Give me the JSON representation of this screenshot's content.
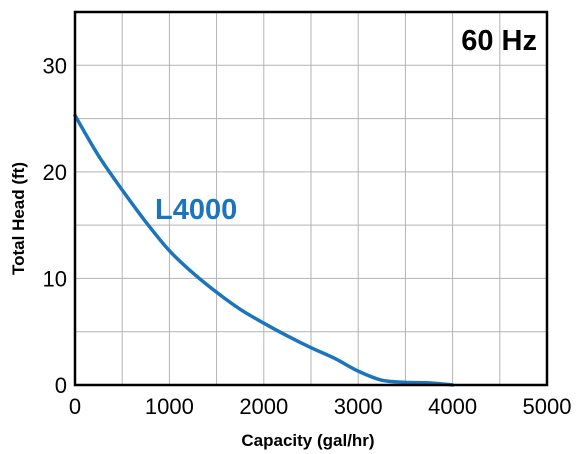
{
  "chart_data": {
    "type": "line",
    "title": "",
    "xlabel": "Capacity (gal/hr)",
    "ylabel": "Total Head (ft)",
    "annotation": "60 Hz",
    "xlim": [
      0,
      5000
    ],
    "ylim": [
      0,
      35
    ],
    "x_ticks": [
      0,
      1000,
      2000,
      3000,
      4000,
      5000
    ],
    "y_ticks": [
      0,
      10,
      20,
      30
    ],
    "x_tick_labels": [
      "0",
      "1000",
      "2000",
      "3000",
      "4000",
      "5000"
    ],
    "y_tick_labels": [
      "0",
      "10",
      "20",
      "30"
    ],
    "grid": true,
    "colors": {
      "series": "#1a75bc",
      "grid": "#b3b3b3",
      "frame": "#000000"
    },
    "series": [
      {
        "name": "L4000",
        "x": [
          0,
          250,
          500,
          750,
          1000,
          1250,
          1500,
          1750,
          2000,
          2250,
          2500,
          2750,
          3000,
          3250,
          3500,
          3750,
          4000
        ],
        "y": [
          25.3,
          21.5,
          18.3,
          15.3,
          12.6,
          10.5,
          8.7,
          7.1,
          5.8,
          4.6,
          3.5,
          2.5,
          1.3,
          0.45,
          0.25,
          0.2,
          0.0
        ]
      }
    ]
  }
}
